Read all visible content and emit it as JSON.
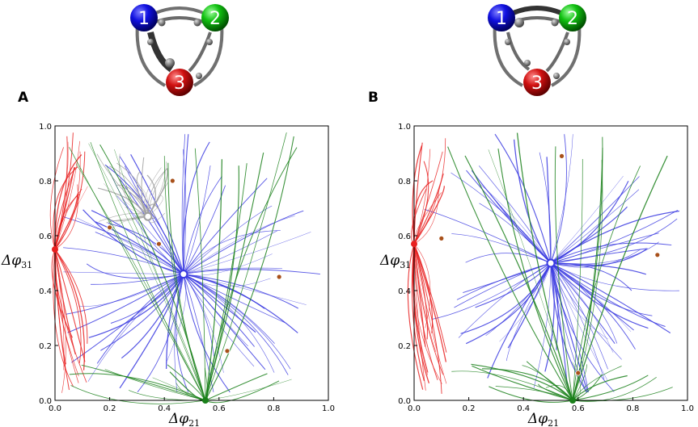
{
  "colors": {
    "node1": "#1010e0",
    "node2": "#10c010",
    "node3": "#d01010",
    "basin_blue": "#3a3ae0",
    "basin_red": "#e82020",
    "basin_green": "#1a801a",
    "basin_gray": "#a0a0a0",
    "saddle": "#a8501a",
    "stable_point_fill": "#ffffff"
  },
  "chart_data": [
    {
      "panel": "A",
      "type": "scatter",
      "description_type": "phase-portrait",
      "network_nodes": [
        "1",
        "2",
        "3"
      ],
      "xlabel": "Δφ21",
      "ylabel": "Δφ31",
      "xlim": [
        0.0,
        1.0
      ],
      "ylim": [
        0.0,
        1.0
      ],
      "xticks": [
        "0.0",
        "0.2",
        "0.4",
        "0.6",
        "0.8",
        "1.0"
      ],
      "yticks": [
        "0.0",
        "0.2",
        "0.4",
        "0.6",
        "0.8",
        "1.0"
      ],
      "stable_points": [
        {
          "x": 0.47,
          "y": 0.46,
          "basin": "blue"
        },
        {
          "x": 0.34,
          "y": 0.67,
          "basin": "gray"
        },
        {
          "x": 0.0,
          "y": 0.55,
          "basin": "red"
        },
        {
          "x": 0.55,
          "y": 0.0,
          "basin": "green"
        }
      ],
      "saddle_points": [
        {
          "x": 0.43,
          "y": 0.8
        },
        {
          "x": 0.2,
          "y": 0.63
        },
        {
          "x": 0.38,
          "y": 0.57
        },
        {
          "x": 0.82,
          "y": 0.45
        },
        {
          "x": 0.63,
          "y": 0.18
        }
      ]
    },
    {
      "panel": "B",
      "type": "scatter",
      "description_type": "phase-portrait",
      "network_nodes": [
        "1",
        "2",
        "3"
      ],
      "xlabel": "Δφ21",
      "ylabel": "Δφ31",
      "xlim": [
        0.0,
        1.0
      ],
      "ylim": [
        0.0,
        1.0
      ],
      "xticks": [
        "0.0",
        "0.2",
        "0.4",
        "0.6",
        "0.8",
        "1.0"
      ],
      "yticks": [
        "0.0",
        "0.2",
        "0.4",
        "0.6",
        "0.8",
        "1.0"
      ],
      "stable_points": [
        {
          "x": 0.5,
          "y": 0.5,
          "basin": "blue"
        },
        {
          "x": 0.0,
          "y": 0.57,
          "basin": "red"
        },
        {
          "x": 0.58,
          "y": 0.0,
          "basin": "green"
        }
      ],
      "saddle_points": [
        {
          "x": 0.54,
          "y": 0.89
        },
        {
          "x": 0.1,
          "y": 0.59
        },
        {
          "x": 0.89,
          "y": 0.53
        },
        {
          "x": 0.6,
          "y": 0.1
        }
      ]
    }
  ]
}
